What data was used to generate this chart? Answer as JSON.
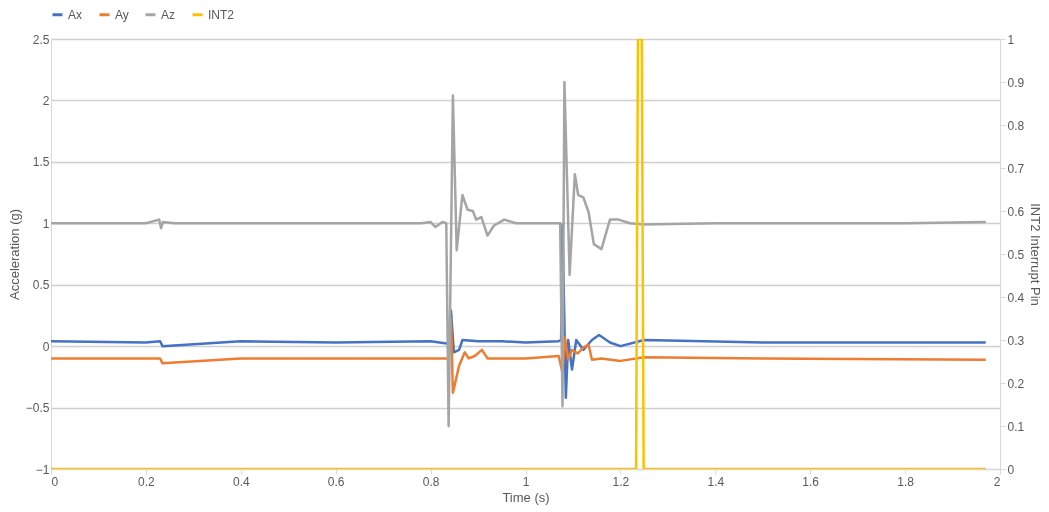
{
  "chart_data": {
    "type": "line",
    "xlabel": "Time (s)",
    "ylabel": "Acceleration (g)",
    "y2label": "INT2 Interrupt Pin",
    "xlim": [
      0,
      2
    ],
    "xticks": [
      0,
      0.2,
      0.4,
      0.6,
      0.8,
      1,
      1.2,
      1.4,
      1.6,
      1.8,
      2
    ],
    "ylim": [
      -1,
      2.5
    ],
    "yticks": [
      -1,
      -0.5,
      0,
      0.5,
      1,
      1.5,
      2,
      2.5
    ],
    "y2lim": [
      0,
      1
    ],
    "y2ticks": [
      0,
      0.1,
      0.2,
      0.3,
      0.4,
      0.5,
      0.6,
      0.7,
      0.8,
      0.9,
      1
    ],
    "grid": "y",
    "legend": "top",
    "marker": "none",
    "line_style": "solid",
    "series": [
      {
        "name": "Ax",
        "color": "#4472c4",
        "x": [
          0,
          0.2,
          0.23,
          0.235,
          0.4,
          0.6,
          0.8,
          0.838,
          0.843,
          0.849,
          0.86,
          0.867,
          0.9,
          0.95,
          1.0,
          1.07,
          1.075,
          1.078,
          1.085,
          1.09,
          1.098,
          1.107,
          1.122,
          1.14,
          1.155,
          1.178,
          1.2,
          1.25,
          1.5,
          1.97
        ],
        "values": [
          0.04,
          0.03,
          0.04,
          0.0,
          0.04,
          0.03,
          0.04,
          0.02,
          0.29,
          -0.05,
          -0.03,
          0.05,
          0.04,
          0.04,
          0.03,
          0.04,
          0.05,
          0.99,
          -0.42,
          0.05,
          -0.19,
          0.05,
          -0.03,
          0.05,
          0.09,
          0.03,
          0.0,
          0.05,
          0.03,
          0.03
        ]
      },
      {
        "name": "Ay",
        "color": "#ed7d31",
        "x": [
          0,
          0.2,
          0.23,
          0.235,
          0.4,
          0.6,
          0.8,
          0.838,
          0.843,
          0.847,
          0.86,
          0.872,
          0.88,
          0.893,
          0.908,
          0.92,
          0.95,
          1.0,
          1.07,
          1.078,
          1.083,
          1.09,
          1.098,
          1.11,
          1.122,
          1.133,
          1.14,
          1.16,
          1.2,
          1.25,
          1.5,
          1.97
        ],
        "values": [
          -0.1,
          -0.1,
          -0.1,
          -0.14,
          -0.1,
          -0.1,
          -0.1,
          -0.1,
          0.22,
          -0.38,
          -0.16,
          -0.05,
          -0.1,
          -0.08,
          -0.03,
          -0.1,
          -0.1,
          -0.1,
          -0.08,
          -0.22,
          0.07,
          -0.11,
          -0.03,
          -0.06,
          -0.01,
          0.01,
          -0.11,
          -0.1,
          -0.12,
          -0.09,
          -0.1,
          -0.11
        ]
      },
      {
        "name": "Az",
        "color": "#a5a5a5",
        "x": [
          0,
          0.1,
          0.2,
          0.228,
          0.232,
          0.236,
          0.26,
          0.4,
          0.6,
          0.78,
          0.8,
          0.81,
          0.825,
          0.833,
          0.838,
          0.847,
          0.855,
          0.867,
          0.878,
          0.889,
          0.896,
          0.907,
          0.92,
          0.933,
          0.955,
          0.98,
          1.0,
          1.05,
          1.07,
          1.073,
          1.078,
          1.082,
          1.093,
          1.104,
          1.111,
          1.122,
          1.133,
          1.144,
          1.16,
          1.178,
          1.196,
          1.22,
          1.25,
          1.4,
          1.6,
          1.8,
          1.97
        ],
        "values": [
          1.0,
          1.0,
          1.0,
          1.03,
          0.96,
          1.01,
          1.0,
          1.0,
          1.0,
          1.0,
          1.01,
          0.97,
          1.01,
          1.0,
          -0.65,
          2.04,
          0.78,
          1.23,
          1.11,
          1.1,
          1.03,
          1.05,
          0.9,
          0.98,
          1.03,
          1.0,
          1.0,
          1.0,
          1.0,
          1.0,
          -0.49,
          2.15,
          0.58,
          1.4,
          1.23,
          1.21,
          1.09,
          0.83,
          0.79,
          1.03,
          1.03,
          1.0,
          0.99,
          1.0,
          1.0,
          1.0,
          1.01
        ]
      },
      {
        "name": "INT2",
        "color": "#ffc000",
        "axis": "y2",
        "x": [
          0,
          1.233,
          1.237,
          1.245,
          1.249,
          1.97
        ],
        "values": [
          0,
          0,
          1,
          1,
          0,
          0
        ]
      }
    ]
  }
}
